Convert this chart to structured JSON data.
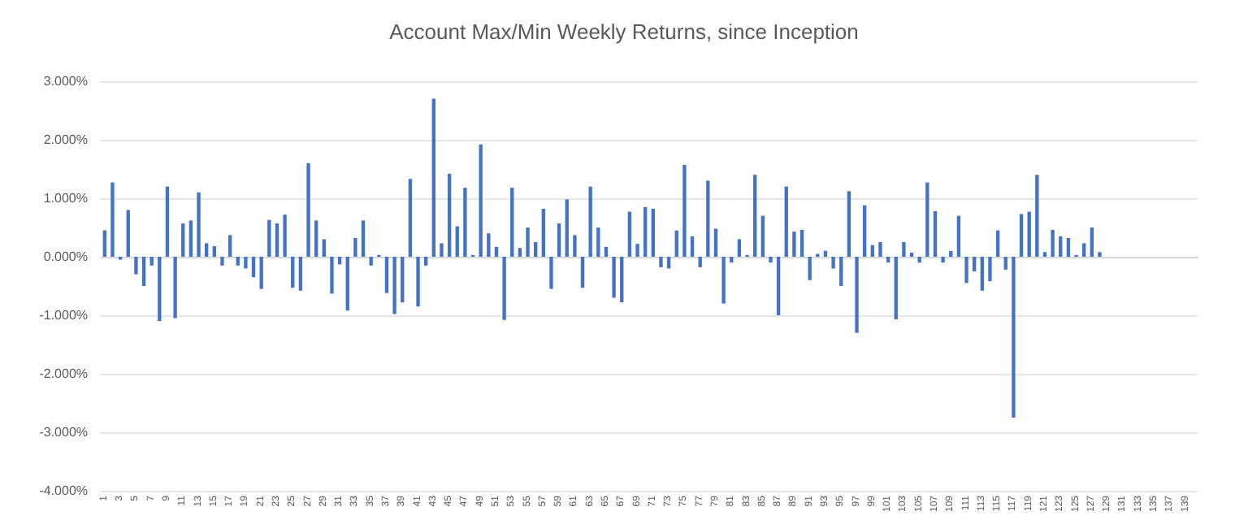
{
  "chart_data": {
    "type": "bar",
    "title": "Account Max/Min Weekly Returns, since Inception",
    "categories": [
      "1",
      null,
      "3",
      null,
      "5",
      null,
      "7",
      null,
      "9",
      null,
      "11",
      null,
      "13",
      null,
      "15",
      null,
      "17",
      null,
      "19",
      null,
      "21",
      null,
      "23",
      null,
      "25",
      null,
      "27",
      null,
      "29",
      null,
      "31",
      null,
      "33",
      null,
      "35",
      null,
      "37",
      null,
      "39",
      null,
      "41",
      null,
      "43",
      null,
      "45",
      null,
      "47",
      null,
      "49",
      null,
      "51",
      null,
      "53",
      null,
      "55",
      null,
      "57",
      null,
      "59",
      null,
      "61",
      null,
      "63",
      null,
      "65",
      null,
      "67",
      null,
      "69",
      null,
      "71",
      null,
      "73",
      null,
      "75",
      null,
      "77",
      null,
      "79",
      null,
      "81",
      null,
      "83",
      null,
      "85",
      null,
      "87",
      null,
      "89",
      null,
      "91",
      null,
      "93",
      null,
      "95",
      null,
      "97",
      null,
      "99",
      null,
      "101",
      null,
      "103",
      null,
      "105",
      null,
      "107",
      null,
      "109",
      null,
      "111",
      null,
      "113",
      null,
      "115",
      null,
      "117",
      null,
      "119",
      null,
      "121",
      null,
      "123",
      null,
      "125",
      null,
      "127",
      null,
      "129",
      null,
      "131",
      null,
      "133",
      null,
      "135",
      null,
      "137",
      null,
      "139",
      null
    ],
    "series": [
      {
        "color": "#4472c4",
        "values": [
          0.45,
          1.27,
          -0.05,
          0.8,
          -0.3,
          -0.5,
          -0.15,
          -1.1,
          1.2,
          -1.05,
          0.57,
          0.62,
          1.1,
          0.23,
          0.18,
          -0.15,
          0.37,
          -0.15,
          -0.2,
          -0.35,
          -0.55,
          0.63,
          0.57,
          0.72,
          -0.53,
          -0.58,
          1.6,
          0.62,
          0.3,
          -0.63,
          -0.13,
          -0.92,
          0.32,
          0.62,
          -0.15,
          0.03,
          -0.62,
          -0.98,
          -0.78,
          1.33,
          -0.85,
          -0.15,
          2.7,
          0.23,
          1.42,
          0.52,
          1.18,
          0.03,
          1.92,
          0.4,
          0.17,
          -1.08,
          1.18,
          0.15,
          0.5,
          0.25,
          0.82,
          -0.55,
          0.57,
          0.98,
          0.37,
          -0.53,
          1.2,
          0.5,
          0.17,
          -0.7,
          -0.78,
          0.77,
          0.22,
          0.85,
          0.82,
          -0.18,
          -0.2,
          0.45,
          1.57,
          0.35,
          -0.18,
          1.3,
          0.48,
          -0.8,
          -0.1,
          0.3,
          0.03,
          1.4,
          0.7,
          -0.1,
          -1.0,
          1.2,
          0.43,
          0.46,
          -0.4,
          0.05,
          0.1,
          -0.2,
          -0.5,
          1.12,
          -1.3,
          0.88,
          0.2,
          0.25,
          -0.1,
          -1.07,
          0.25,
          0.07,
          -0.1,
          1.27,
          0.78,
          -0.1,
          0.1,
          0.7,
          -0.45,
          -0.25,
          -0.58,
          -0.42,
          0.45,
          -0.22,
          -2.75,
          0.73,
          0.77,
          1.4,
          0.08,
          0.46,
          0.35,
          0.32,
          0.03,
          0.23,
          0.5,
          0.08,
          null,
          null,
          null,
          null,
          null,
          null,
          null,
          null,
          null,
          null,
          null,
          null
        ]
      }
    ],
    "ylim": [
      -4,
      3
    ],
    "yticks": [
      {
        "value": -4,
        "label": "-4.000%"
      },
      {
        "value": -3,
        "label": "-3.000%"
      },
      {
        "value": -2,
        "label": "-2.000%"
      },
      {
        "value": -1,
        "label": "-1.000%"
      },
      {
        "value": 0,
        "label": "0.000%"
      },
      {
        "value": 1,
        "label": "1.000%"
      },
      {
        "value": 2,
        "label": "2.000%"
      },
      {
        "value": 3,
        "label": "3.000%"
      }
    ],
    "grid": "y"
  }
}
